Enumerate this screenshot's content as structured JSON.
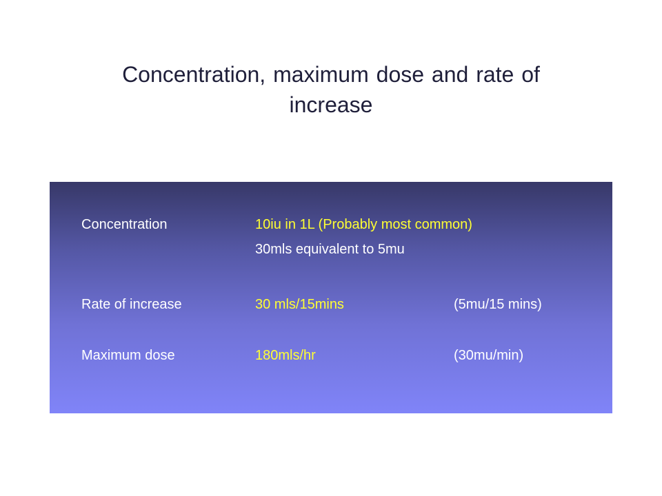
{
  "slide": {
    "title_line1": "Concentration, maximum dose and rate of",
    "title_line2": "increase"
  },
  "panel": {
    "rows": [
      {
        "label": "Concentration",
        "value": "10iu in 1L (Probably most common)",
        "note": ""
      },
      {
        "label": "",
        "value": "30mls equivalent to 5mu",
        "note": ""
      },
      {
        "label": "Rate of increase",
        "value": "30 mls/15mins",
        "note": "(5mu/15 mins)"
      },
      {
        "label": "Maximum dose",
        "value": "180mls/hr",
        "note": "(30mu/min)"
      }
    ]
  },
  "colors": {
    "highlight": "#ffff33",
    "text": "#ffffff",
    "panel_top": "#373868",
    "panel_bottom": "#8084f8"
  }
}
